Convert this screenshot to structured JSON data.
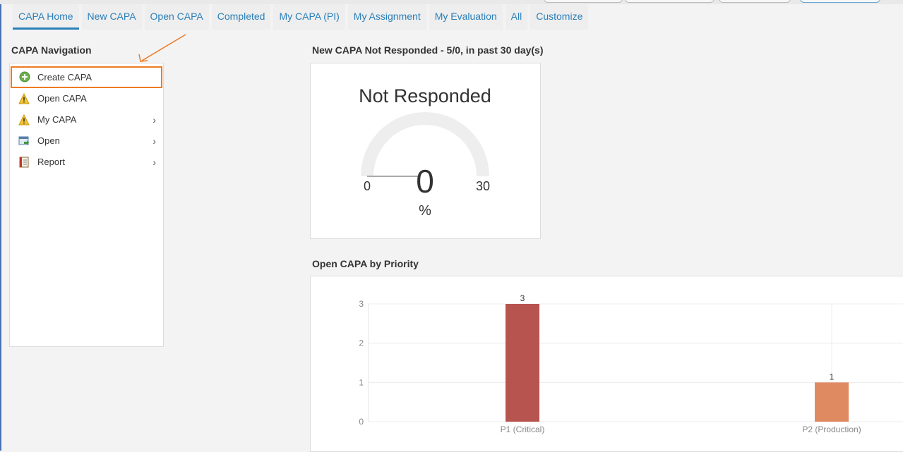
{
  "tabs": [
    {
      "label": "CAPA Home",
      "active": true
    },
    {
      "label": "New CAPA"
    },
    {
      "label": "Open CAPA"
    },
    {
      "label": "Completed"
    },
    {
      "label": "My CAPA (PI)"
    },
    {
      "label": "My Assignment"
    },
    {
      "label": "My Evaluation"
    },
    {
      "label": "All"
    },
    {
      "label": "Customize"
    }
  ],
  "navigation": {
    "title": "CAPA Navigation",
    "items": [
      {
        "label": "Create CAPA",
        "icon": "plus-circle-icon",
        "submenu": false
      },
      {
        "label": "Open CAPA",
        "icon": "warning-icon",
        "submenu": false
      },
      {
        "label": "My CAPA",
        "icon": "warning-icon",
        "submenu": true
      },
      {
        "label": "Open",
        "icon": "window-arrow-icon",
        "submenu": true
      },
      {
        "label": "Report",
        "icon": "report-book-icon",
        "submenu": true
      }
    ]
  },
  "gauge": {
    "section_title": "New CAPA Not Responded - 5/0, in past 30 day(s)",
    "label": "Not Responded",
    "value": "0",
    "value_num": 0,
    "min": "0",
    "max": "30",
    "unit": "%"
  },
  "priority": {
    "section_title": "Open CAPA by Priority"
  },
  "chart_data": {
    "type": "bar",
    "categories": [
      "P1 (Critical)",
      "P2 (Production)"
    ],
    "values": [
      3,
      1
    ],
    "bar_colors": [
      "#b85450",
      "#e08a62"
    ],
    "ylim": [
      0,
      3
    ],
    "yticks": [
      0,
      1,
      2,
      3
    ],
    "grid": true
  },
  "colors": {
    "tab_text": "#2a7fb8",
    "highlight_border": "#ee7a22"
  }
}
